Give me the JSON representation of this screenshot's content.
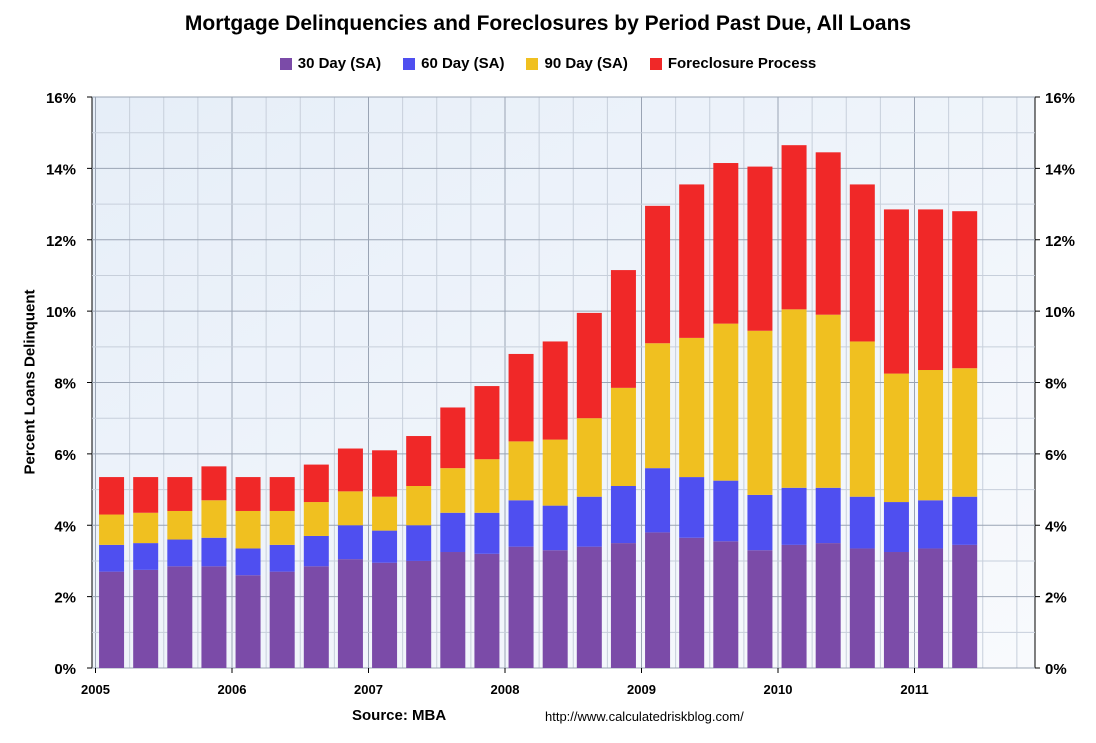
{
  "chart_data": {
    "type": "bar",
    "stacked": true,
    "title": "Mortgage Delinquencies and Foreclosures by Period Past Due, All Loans",
    "ylabel": "Percent Loans Delinquent",
    "xlabel": "",
    "ylim": [
      0,
      16
    ],
    "yticks": [
      "0%",
      "2%",
      "4%",
      "6%",
      "8%",
      "10%",
      "12%",
      "14%",
      "16%"
    ],
    "year_labels": [
      "2005",
      "2006",
      "2007",
      "2008",
      "2009",
      "2010",
      "2011"
    ],
    "categories": [
      "2005Q1",
      "2005Q2",
      "2005Q3",
      "2005Q4",
      "2006Q1",
      "2006Q2",
      "2006Q3",
      "2006Q4",
      "2007Q1",
      "2007Q2",
      "2007Q3",
      "2007Q4",
      "2008Q1",
      "2008Q2",
      "2008Q3",
      "2008Q4",
      "2009Q1",
      "2009Q2",
      "2009Q3",
      "2009Q4",
      "2010Q1",
      "2010Q2",
      "2010Q3",
      "2010Q4",
      "2011Q1",
      "2011Q2"
    ],
    "series": [
      {
        "name": "30 Day (SA)",
        "color": "#7b4ba8",
        "values": [
          2.7,
          2.75,
          2.85,
          2.85,
          2.6,
          2.7,
          2.85,
          3.05,
          2.95,
          3.0,
          3.25,
          3.2,
          3.4,
          3.3,
          3.4,
          3.5,
          3.8,
          3.65,
          3.55,
          3.3,
          3.45,
          3.5,
          3.35,
          3.25,
          3.35,
          3.45
        ]
      },
      {
        "name": "60 Day (SA)",
        "color": "#4f4ff0",
        "values": [
          0.75,
          0.75,
          0.75,
          0.8,
          0.75,
          0.75,
          0.85,
          0.95,
          0.9,
          1.0,
          1.1,
          1.15,
          1.3,
          1.25,
          1.4,
          1.6,
          1.8,
          1.7,
          1.7,
          1.55,
          1.6,
          1.55,
          1.45,
          1.4,
          1.35,
          1.35
        ]
      },
      {
        "name": "90 Day (SA)",
        "color": "#f0c020",
        "values": [
          0.85,
          0.85,
          0.8,
          1.05,
          1.05,
          0.95,
          0.95,
          0.95,
          0.95,
          1.1,
          1.25,
          1.5,
          1.65,
          1.85,
          2.2,
          2.75,
          3.5,
          3.9,
          4.4,
          4.6,
          5.0,
          4.85,
          4.35,
          3.6,
          3.65,
          3.6
        ]
      },
      {
        "name": "Foreclosure Process",
        "color": "#f02828",
        "values": [
          1.05,
          1.0,
          0.95,
          0.95,
          0.95,
          0.95,
          1.05,
          1.2,
          1.3,
          1.4,
          1.7,
          2.05,
          2.45,
          2.75,
          2.95,
          3.3,
          3.85,
          4.3,
          4.5,
          4.6,
          4.6,
          4.55,
          4.4,
          4.6,
          4.5,
          4.4
        ]
      }
    ],
    "grid": true,
    "legend_position": "top-center"
  },
  "source_label": "Source: MBA",
  "url_label": "http://www.calculatedriskblog.com/"
}
